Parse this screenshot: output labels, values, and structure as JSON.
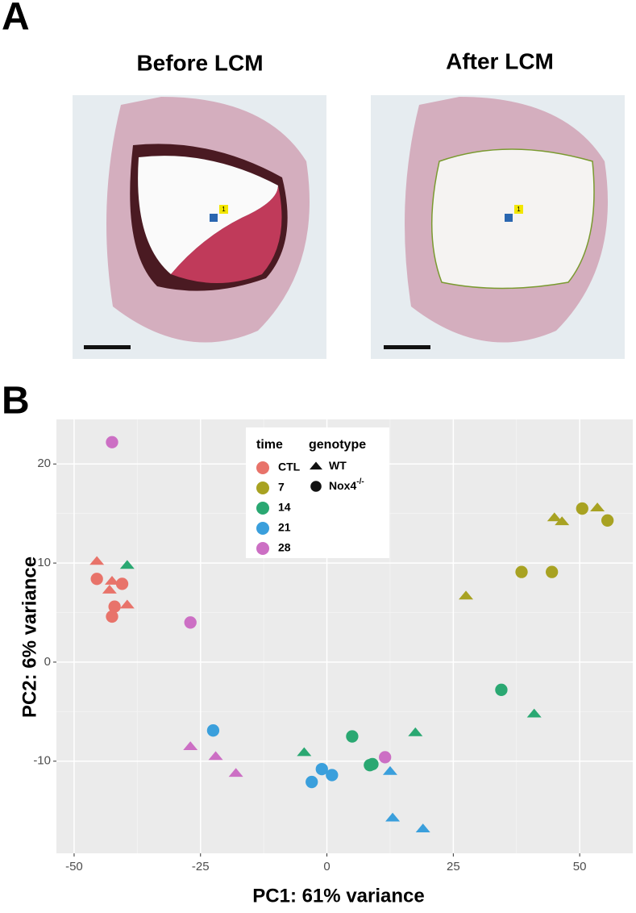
{
  "panel_a": {
    "label": "A",
    "images": [
      {
        "title": "Before LCM",
        "marker": "1"
      },
      {
        "title": "After LCM",
        "marker": "1"
      }
    ]
  },
  "chart_data": {
    "type": "scatter",
    "panel_label": "B",
    "x_label": "PC1: 61% variance",
    "y_label": "PC2: 6% variance",
    "xlim": [
      -53.5,
      60.5
    ],
    "ylim": [
      -19.3,
      24.5
    ],
    "xticks": [
      -50,
      -25,
      0,
      25,
      50
    ],
    "yticks": [
      -10,
      0,
      10,
      20
    ],
    "grid": true,
    "time_legend_title": "time",
    "genotype_legend": {
      "title": "genotype",
      "entries": [
        {
          "name": "WT",
          "shape": "triangle"
        },
        {
          "name": "Nox4",
          "sup": "-/-",
          "shape": "circle"
        }
      ]
    },
    "series": [
      {
        "name": "CTL",
        "color": "#e8736a",
        "groups": [
          {
            "shape": "triangle",
            "x": [
              -45.5,
              -42.5,
              -43,
              -39.5
            ],
            "y": [
              10.2,
              8.2,
              7.3,
              5.8
            ]
          },
          {
            "shape": "circle",
            "x": [
              -45.5,
              -40.5,
              -42,
              -42.5
            ],
            "y": [
              8.4,
              7.9,
              5.6,
              4.6
            ]
          }
        ]
      },
      {
        "name": "7",
        "color": "#a8a222",
        "groups": [
          {
            "shape": "triangle",
            "x": [
              27.5,
              45,
              46.5,
              53.5
            ],
            "y": [
              6.7,
              14.6,
              14.2,
              15.6
            ]
          },
          {
            "shape": "circle",
            "x": [
              38.5,
              44.5,
              50.5,
              55.5
            ],
            "y": [
              9.1,
              9.1,
              15.5,
              14.3
            ]
          }
        ]
      },
      {
        "name": "14",
        "color": "#2aa872",
        "groups": [
          {
            "shape": "triangle",
            "x": [
              -39.5,
              -4.5,
              17.5,
              41
            ],
            "y": [
              9.8,
              -9.1,
              -7.1,
              -5.2
            ]
          },
          {
            "shape": "circle",
            "x": [
              34.5,
              5,
              8.5,
              9
            ],
            "y": [
              -2.8,
              -7.5,
              -10.4,
              -10.3
            ]
          }
        ]
      },
      {
        "name": "21",
        "color": "#3a9fdc",
        "groups": [
          {
            "shape": "triangle",
            "x": [
              12.5,
              13,
              19
            ],
            "y": [
              -11,
              -15.7,
              -16.8
            ]
          },
          {
            "shape": "circle",
            "x": [
              -22.5,
              -3,
              -1,
              1
            ],
            "y": [
              -6.9,
              -12.1,
              -10.8,
              -11.4
            ]
          }
        ]
      },
      {
        "name": "28",
        "color": "#cc6fc4",
        "groups": [
          {
            "shape": "triangle",
            "x": [
              -27,
              -22,
              -18
            ],
            "y": [
              -8.5,
              -9.5,
              -11.2
            ]
          },
          {
            "shape": "circle",
            "x": [
              -42.5,
              -27,
              11.5
            ],
            "y": [
              22.2,
              4,
              -9.6
            ]
          }
        ]
      }
    ]
  }
}
